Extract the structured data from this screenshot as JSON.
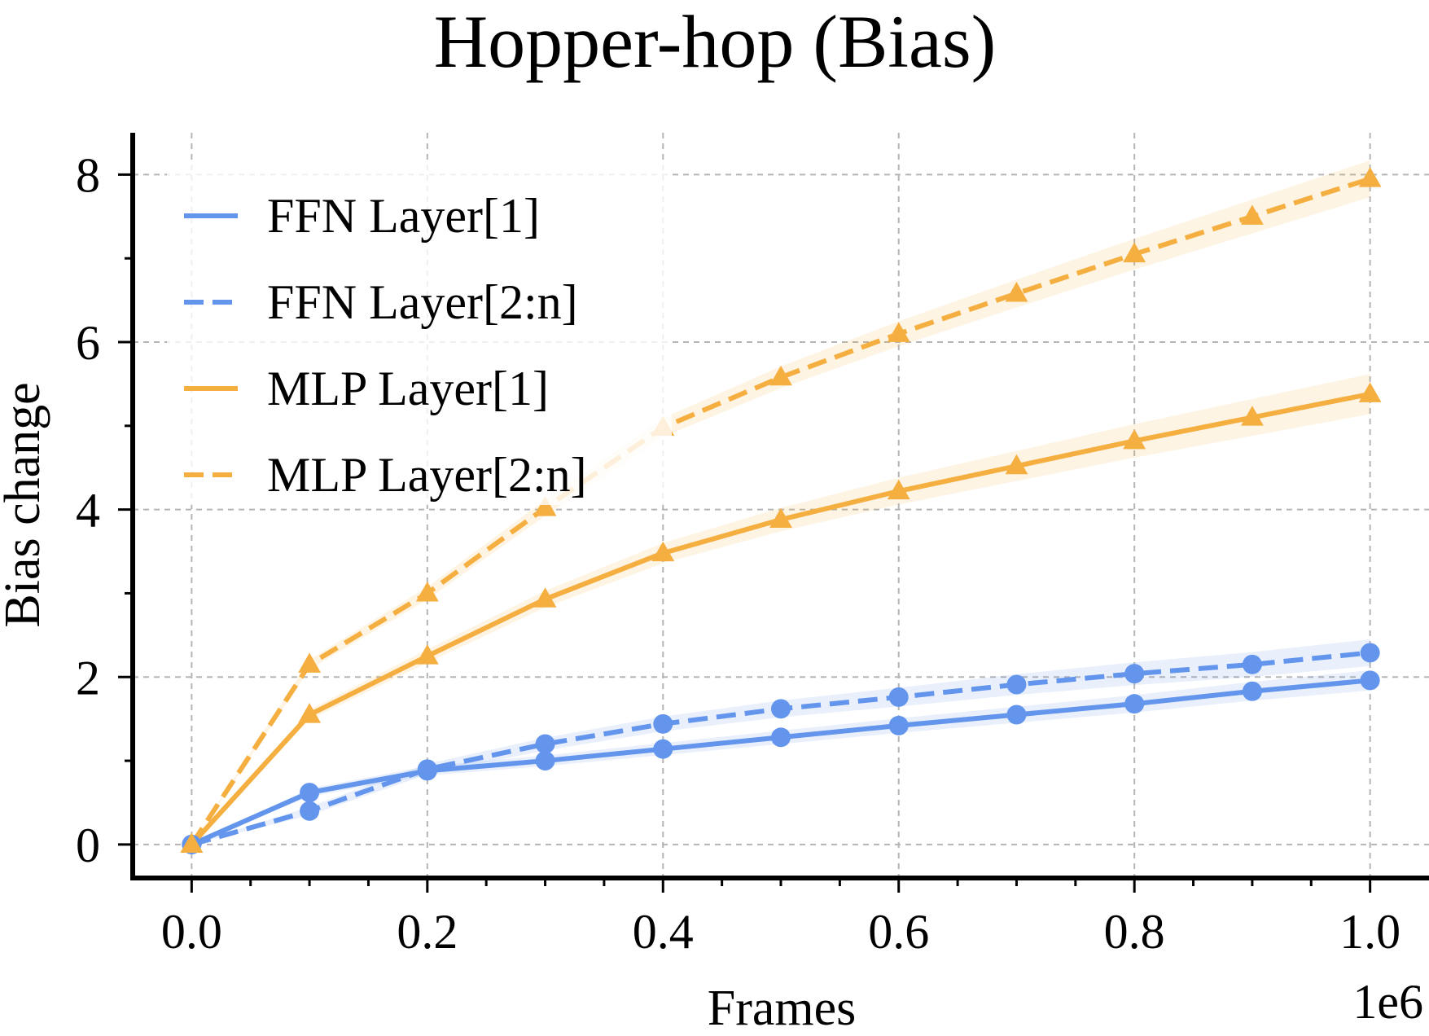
{
  "chart_data": {
    "type": "line",
    "title": "Hopper-hop (Bias)",
    "xlabel": "Frames",
    "ylabel": "Bias change",
    "x_offset_label": "1e6",
    "xlim": [
      -0.05,
      1.05
    ],
    "ylim": [
      -0.4,
      8.5
    ],
    "xticks": [
      "0.0",
      "0.2",
      "0.4",
      "0.6",
      "0.8",
      "1.0"
    ],
    "yticks": [
      "0",
      "2",
      "4",
      "6",
      "8"
    ],
    "grid": true,
    "legend_position": "top-left",
    "x": [
      0.0,
      0.1,
      0.2,
      0.3,
      0.4,
      0.5,
      0.6,
      0.7,
      0.8,
      0.9,
      1.0
    ],
    "series": [
      {
        "name": "FFN Layer[1]",
        "color": "#6495ED",
        "linestyle": "solid",
        "marker": "circle",
        "values": [
          0.0,
          0.62,
          0.88,
          1.0,
          1.14,
          1.28,
          1.42,
          1.55,
          1.68,
          1.83,
          1.96
        ],
        "band": 0.08
      },
      {
        "name": "FFN Layer[2:n]",
        "color": "#6495ED",
        "linestyle": "dashed",
        "marker": "circle",
        "values": [
          0.0,
          0.4,
          0.9,
          1.2,
          1.44,
          1.62,
          1.76,
          1.91,
          2.04,
          2.15,
          2.29
        ],
        "band": 0.12
      },
      {
        "name": "MLP Layer[1]",
        "color": "#F5AF41",
        "linestyle": "solid",
        "marker": "triangle",
        "values": [
          0.0,
          1.55,
          2.25,
          2.93,
          3.48,
          3.88,
          4.22,
          4.52,
          4.82,
          5.1,
          5.38
        ],
        "band": 0.2
      },
      {
        "name": "MLP Layer[2:n]",
        "color": "#F5AF41",
        "linestyle": "dashed",
        "marker": "triangle",
        "values": [
          0.0,
          2.15,
          3.0,
          4.02,
          4.98,
          5.58,
          6.1,
          6.58,
          7.05,
          7.5,
          7.95
        ],
        "band": 0.18
      }
    ]
  }
}
